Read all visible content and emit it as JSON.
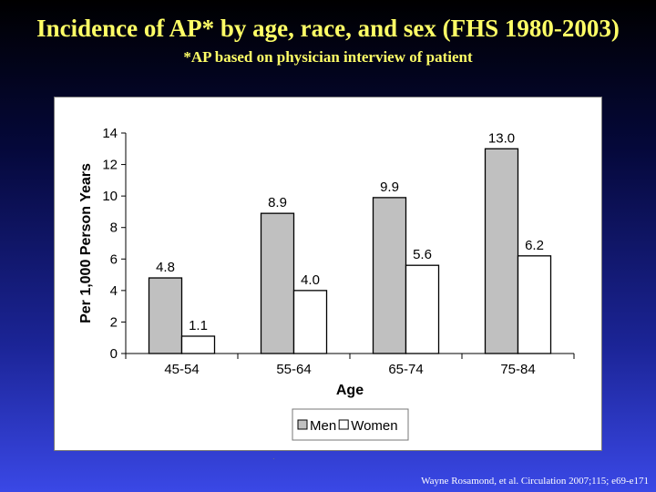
{
  "title": "Incidence of AP* by age, race, and sex (FHS 1980-2003)",
  "subtitle": "*AP based on physician interview of patient",
  "citation": "Wayne Rosamond, et al. Circulation  2007;115; e69-e171",
  "colors": {
    "title": "#ffff66",
    "men_bar": "#c0c0c0",
    "women_bar": "#ffffff",
    "bar_stroke": "#000000"
  },
  "chart_data": {
    "type": "bar",
    "xlabel": "Age",
    "ylabel": "Per 1,000 Person Years",
    "categories": [
      "45-54",
      "55-64",
      "65-74",
      "75-84"
    ],
    "series": [
      {
        "name": "Men",
        "values": [
          4.8,
          8.9,
          9.9,
          13.0
        ],
        "labels": [
          "4.8",
          "8.9",
          "9.9",
          "13.0"
        ]
      },
      {
        "name": "Women",
        "values": [
          1.1,
          4.0,
          5.6,
          6.2
        ],
        "labels": [
          "1.1",
          "4.0",
          "5.6",
          "6.2"
        ]
      }
    ],
    "ylim": [
      0,
      14
    ],
    "yticks": [
      0,
      2,
      4,
      6,
      8,
      10,
      12,
      14
    ],
    "grid": false,
    "legend_position": "bottom-center"
  }
}
